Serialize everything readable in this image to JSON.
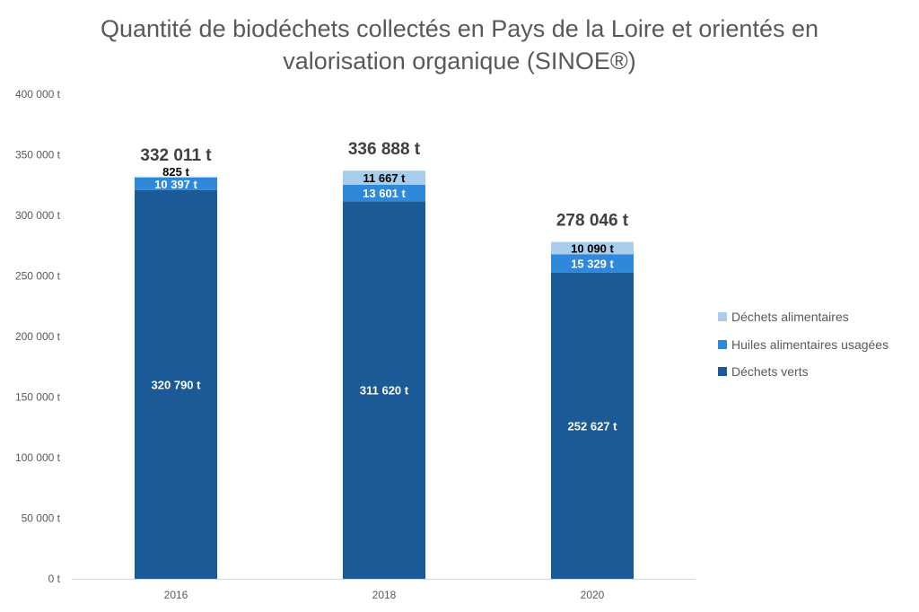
{
  "chart_data": {
    "type": "bar",
    "stacked": true,
    "title_lines": [
      "Quantité de biodéchets collectés en Pays de la Loire et orientés en",
      "valorisation organique (SINOE®)"
    ],
    "categories": [
      "2016",
      "2018",
      "2020"
    ],
    "series": [
      {
        "name": "Déchets verts",
        "values": [
          320790,
          311620,
          252627
        ],
        "labels": [
          "320 790 t",
          "311 620 t",
          "252 627 t"
        ],
        "color": "#1b5a96",
        "label_color": "#ffffff"
      },
      {
        "name": "Huiles alimentaires usagées",
        "values": [
          10397,
          13601,
          15329
        ],
        "labels": [
          "10 397 t",
          "13 601 t",
          "15 329 t"
        ],
        "color": "#2f88da",
        "label_color": "#ffffff"
      },
      {
        "name": "Déchets alimentaires",
        "values": [
          825,
          11667,
          10090
        ],
        "labels": [
          "825 t",
          "11 667 t",
          "10 090 t"
        ],
        "color": "#a9cdec",
        "label_color": "#000000"
      }
    ],
    "totals": [
      "332 011 t",
      "336 888 t",
      "278 046 t"
    ],
    "ylim": [
      0,
      400000
    ],
    "yticks": [
      0,
      50000,
      100000,
      150000,
      200000,
      250000,
      300000,
      350000,
      400000
    ],
    "ytick_labels": [
      "0 t",
      "50 000 t",
      "100 000 t",
      "150 000 t",
      "200 000 t",
      "250 000 t",
      "300 000 t",
      "350 000 t",
      "400 000 t"
    ],
    "grid": false,
    "legend_position": "right",
    "legend_order": [
      "Déchets alimentaires",
      "Huiles alimentaires usagées",
      "Déchets verts"
    ],
    "xlabel": "",
    "ylabel": ""
  }
}
